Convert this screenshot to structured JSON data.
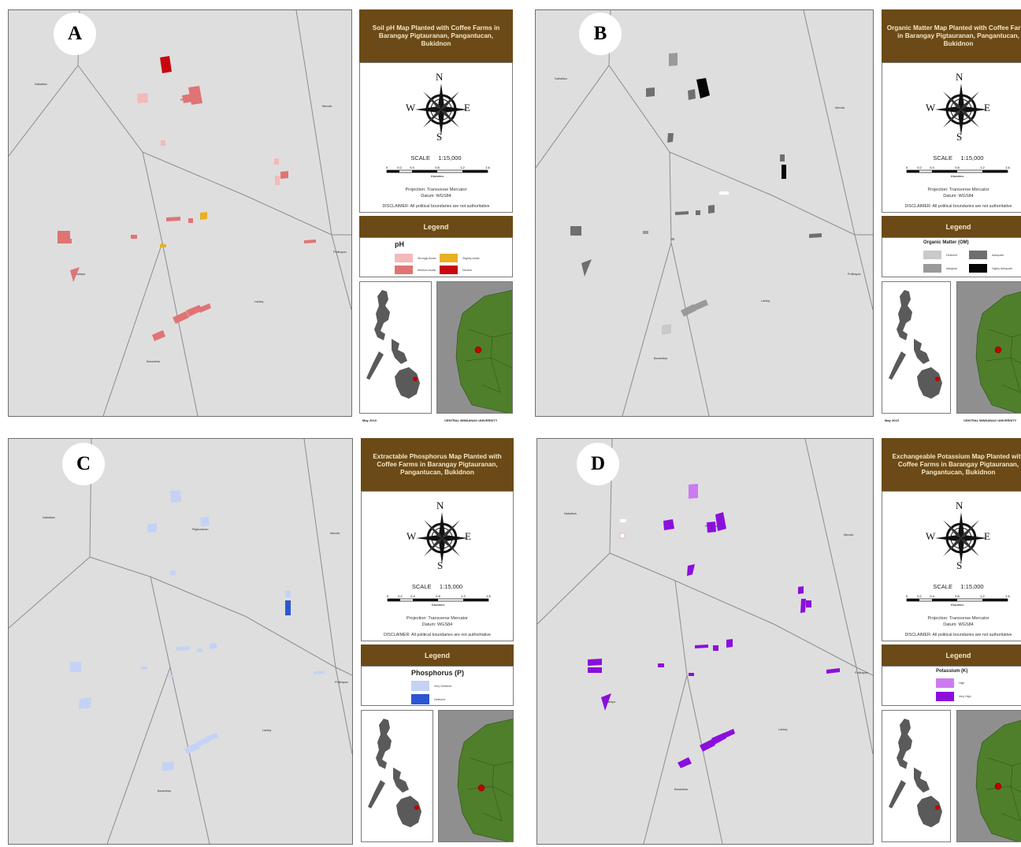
{
  "panels": [
    {
      "letter": "A",
      "title": "Soil pH Map Planted with Coffee Farms in Barangay Pigtauranan, Pangantucan, Bukidnon",
      "legend_heading": "Legend",
      "legend_title": "pH",
      "legend_items": [
        {
          "label": "Strongly Acidic",
          "color": "#f4b9b9"
        },
        {
          "label": "Slightly Acidic",
          "color": "#e8b022"
        },
        {
          "label": "Medium Acidic",
          "color": "#e07474"
        },
        {
          "label": "Neutral",
          "color": "#c8080e"
        }
      ],
      "footer_left": "May 2019",
      "footer_right": "CENTRAL MINDANAO UNIVERSITY"
    },
    {
      "letter": "B",
      "title": "Organic Matter Map Planted with Coffee Farms in Barangay Pigtauranan, Pangantucan, Bukidnon",
      "legend_heading": "Legend",
      "legend_title": "Organic Matter (OM)",
      "legend_items": [
        {
          "label": "Deficient",
          "color": "#c9c9c9"
        },
        {
          "label": "Adequate",
          "color": "#6f6f6f"
        },
        {
          "label": "Marginal",
          "color": "#9a9a9a"
        },
        {
          "label": "Highly Adequate",
          "color": "#050505"
        }
      ],
      "footer_left": "May 2019",
      "footer_right": "CENTRAL MINDANAO UNIVERSITY"
    },
    {
      "letter": "C",
      "title": "Extractable Phosphorus Map Planted with Coffee Farms in Barangay Pigtauranan, Pangantucan, Bukidnon",
      "legend_heading": "Legend",
      "legend_title": "Phosphorus (P)",
      "legend_items": [
        {
          "label": "Very Deficient",
          "color": "#c4d3f5"
        },
        {
          "label": "Deficient",
          "color": "#2c56d2"
        }
      ]
    },
    {
      "letter": "D",
      "title": "Exchangeable Potassium Map Planted with Coffee Farms in Barangay Pigtauranan, Pangantucan, Bukidnon",
      "legend_heading": "Legend",
      "legend_title": "Potassium (K)",
      "legend_items": [
        {
          "label": "High",
          "color": "#cc7bef"
        },
        {
          "label": "Very High",
          "color": "#8b0fdc"
        }
      ]
    }
  ],
  "common": {
    "north": "N",
    "south": "S",
    "east": "E",
    "west": "W",
    "scale_label": "SCALE",
    "scale_value": "1:15,000",
    "scale_ticks": [
      "0",
      "0.2",
      "0.4",
      "0.8",
      "1.2",
      "1.6"
    ],
    "scale_unit": "Kilometers",
    "projection": "Projection: Transverse Mercator",
    "datum": "Datum: WGS84",
    "disclaimer": "DISCLAIMER:   All political boundaries are not authoritative"
  },
  "places": {
    "nabaliwa": "Nabaliwa",
    "mendis": "Mendis",
    "potikayan": "Potikayan",
    "lantay": "Lantay",
    "barandias": "Barandias",
    "pigtauranan": "Pigtauranan",
    "mailaya": "Mailaya"
  },
  "colors": {
    "map_bg": "#dedede",
    "boundary": "#8c8c8c",
    "title_bg": "#6b4a17",
    "inset_sea": "#8f8f8f",
    "inset_land": "#4f7f2a",
    "marker": "#c00000"
  }
}
